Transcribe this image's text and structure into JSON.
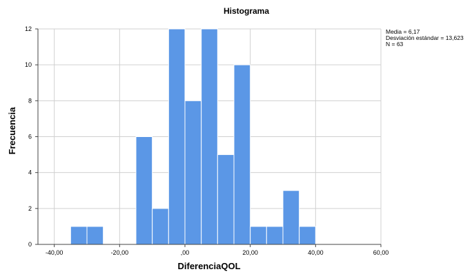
{
  "chart_data": {
    "type": "bar",
    "title": "Histograma",
    "xlabel": "DiferenciaQOL",
    "ylabel": "Frecuencia",
    "xlim": [
      -45,
      60
    ],
    "ylim": [
      0,
      12
    ],
    "x_ticks": [
      -40,
      -20,
      0,
      20,
      40,
      60
    ],
    "x_tick_labels": [
      "-40,00",
      "-20,00",
      ",00",
      "20,00",
      "40,00",
      "60,00"
    ],
    "y_ticks": [
      0,
      2,
      4,
      6,
      8,
      10,
      12
    ],
    "y_tick_labels": [
      "0",
      "2",
      "4",
      "6",
      "8",
      "10",
      "12"
    ],
    "grid": true,
    "bar_color": "#5b97e6",
    "bins": [
      {
        "start": -35,
        "end": -30,
        "value": 1
      },
      {
        "start": -30,
        "end": -25,
        "value": 1
      },
      {
        "start": -15,
        "end": -10,
        "value": 6
      },
      {
        "start": -10,
        "end": -5,
        "value": 2
      },
      {
        "start": -5,
        "end": 0,
        "value": 12
      },
      {
        "start": 0,
        "end": 5,
        "value": 8
      },
      {
        "start": 5,
        "end": 10,
        "value": 12
      },
      {
        "start": 10,
        "end": 15,
        "value": 5
      },
      {
        "start": 15,
        "end": 20,
        "value": 10
      },
      {
        "start": 20,
        "end": 25,
        "value": 1
      },
      {
        "start": 25,
        "end": 30,
        "value": 1
      },
      {
        "start": 30,
        "end": 35,
        "value": 3
      },
      {
        "start": 35,
        "end": 40,
        "value": 1
      }
    ],
    "annotations": [
      "Media = 6,17",
      "Desviación estándar = 13,623",
      "N = 63"
    ]
  }
}
